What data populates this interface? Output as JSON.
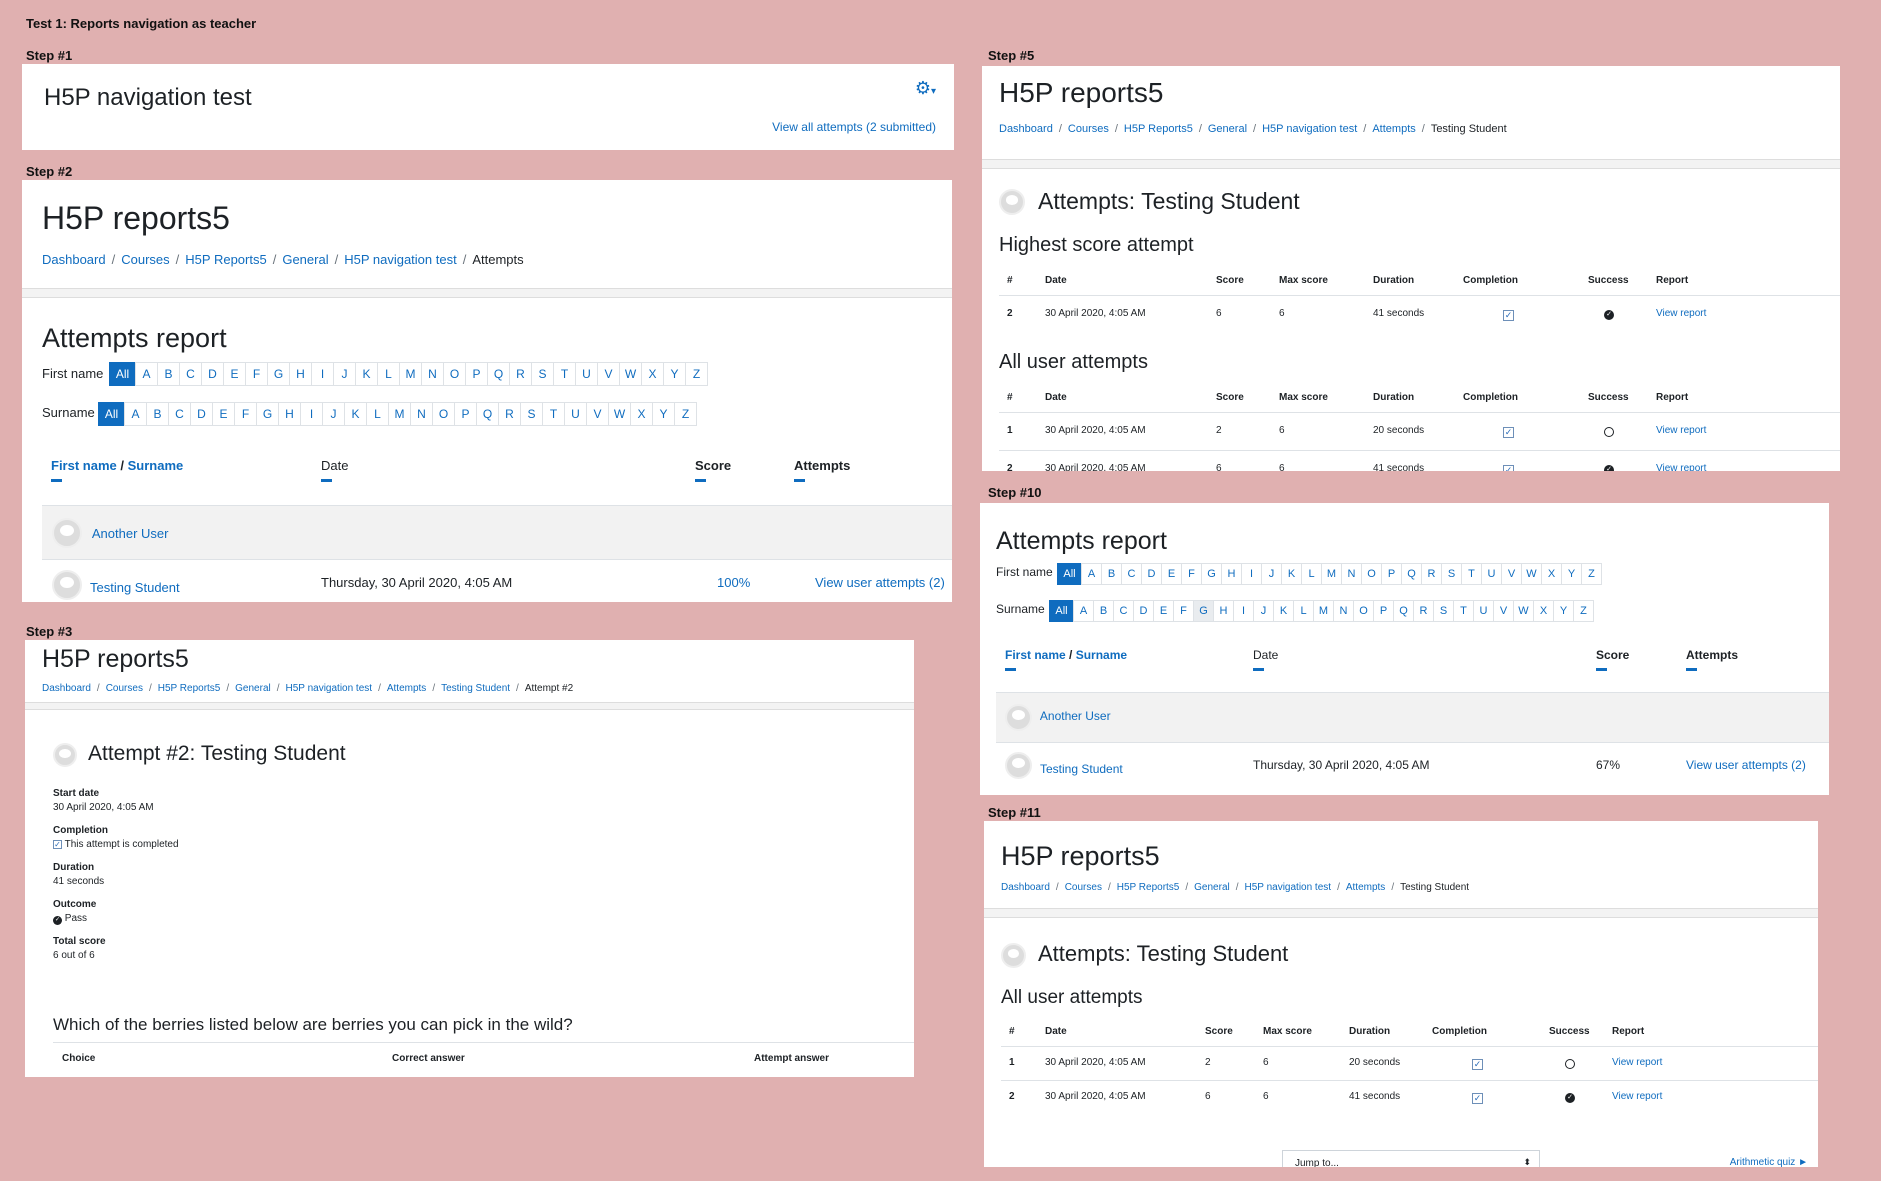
{
  "title": "Test 1: Reports navigation as teacher",
  "steps": {
    "s1": "Step #1",
    "s2": "Step #2",
    "s3": "Step #3",
    "s5": "Step #5",
    "s10": "Step #10",
    "s11": "Step #11"
  },
  "p1": {
    "heading": "H5P navigation test",
    "gear": "gear-icon",
    "view_all": "View all attempts (2 submitted)"
  },
  "site": "H5P reports5",
  "bc": {
    "dashboard": "Dashboard",
    "courses": "Courses",
    "course": "H5P Reports5",
    "general": "General",
    "activity": "H5P navigation test",
    "attempts": "Attempts",
    "student": "Testing Student",
    "attempt2": "Attempt #2"
  },
  "report": {
    "title": "Attempts report",
    "first_name": "First name",
    "surname": "Surname",
    "all": "All",
    "letters": [
      "A",
      "B",
      "C",
      "D",
      "E",
      "F",
      "G",
      "H",
      "I",
      "J",
      "K",
      "L",
      "M",
      "N",
      "O",
      "P",
      "Q",
      "R",
      "S",
      "T",
      "U",
      "V",
      "W",
      "X",
      "Y",
      "Z"
    ],
    "col_first": "First name",
    "col_slash": "/",
    "col_surname": "Surname",
    "col_date": "Date",
    "col_score": "Score",
    "col_attempts": "Attempts",
    "u1": "Another User",
    "u2": "Testing Student",
    "u2_date": "Thursday, 30 April 2020, 4:05 AM",
    "u2_score_s2": "100%",
    "u2_score_s10": "67%",
    "u2_link": "View user attempts (2)"
  },
  "attempt": {
    "title": "Attempt #2: Testing Student",
    "start_label": "Start date",
    "start": "30 April 2020, 4:05 AM",
    "completion_label": "Completion",
    "completion": "This attempt is completed",
    "duration_label": "Duration",
    "duration": "41 seconds",
    "outcome_label": "Outcome",
    "outcome": "Pass",
    "total_label": "Total score",
    "total": "6 out of 6",
    "question": "Which of the berries listed below are berries you can pick in the wild?",
    "c_choice": "Choice",
    "c_correct": "Correct answer",
    "c_attempt": "Attempt answer"
  },
  "ua": {
    "title": "Attempts: Testing Student",
    "highest": "Highest score attempt",
    "all": "All user attempts",
    "h": {
      "n": "#",
      "date": "Date",
      "score": "Score",
      "max": "Max score",
      "dur": "Duration",
      "comp": "Completion",
      "succ": "Success",
      "rep": "Report"
    },
    "r1": {
      "n": "1",
      "date": "30 April 2020, 4:05 AM",
      "score": "2",
      "max": "6",
      "dur": "20 seconds",
      "rep": "View report"
    },
    "r2": {
      "n": "2",
      "date": "30 April 2020, 4:05 AM",
      "score": "6",
      "max": "6",
      "dur": "41 seconds",
      "rep": "View report"
    },
    "jump": "Jump to...",
    "next": "Arithmetic quiz ►"
  }
}
